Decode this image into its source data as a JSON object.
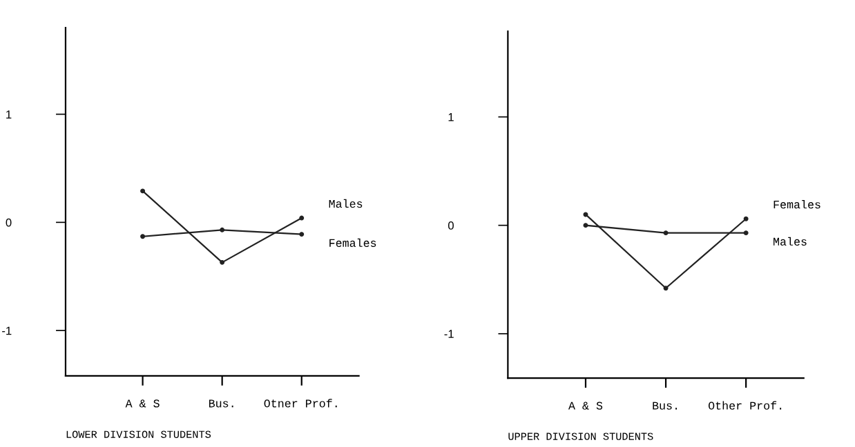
{
  "chart_data": [
    {
      "type": "line",
      "title": "LOWER DIVISION STUDENTS",
      "categories": [
        "A & S",
        "Bus.",
        "Otner Prof."
      ],
      "ylim": [
        -1.42,
        1.8
      ],
      "yticks": [
        1,
        0,
        -1
      ],
      "marker": "circle",
      "line_style": "solid",
      "grid": false,
      "legend": false,
      "series": [
        {
          "name": "Males",
          "color": "#222222",
          "values": [
            0.29,
            -0.37,
            0.04
          ]
        },
        {
          "name": "Females",
          "color": "#222222",
          "values": [
            -0.13,
            -0.07,
            -0.11
          ]
        }
      ]
    },
    {
      "type": "line",
      "title": "UPPER DIVISION STUDENTS",
      "categories": [
        "A & S",
        "Bus.",
        "Other Prof."
      ],
      "ylim": [
        -1.41,
        1.79
      ],
      "yticks": [
        1,
        0,
        -1
      ],
      "marker": "circle",
      "line_style": "solid",
      "grid": false,
      "legend": false,
      "series": [
        {
          "name": "Females",
          "color": "#222222",
          "values": [
            0.1,
            -0.58,
            0.06
          ]
        },
        {
          "name": "Males",
          "color": "#222222",
          "values": [
            0.0,
            -0.07,
            -0.07
          ]
        }
      ]
    }
  ]
}
